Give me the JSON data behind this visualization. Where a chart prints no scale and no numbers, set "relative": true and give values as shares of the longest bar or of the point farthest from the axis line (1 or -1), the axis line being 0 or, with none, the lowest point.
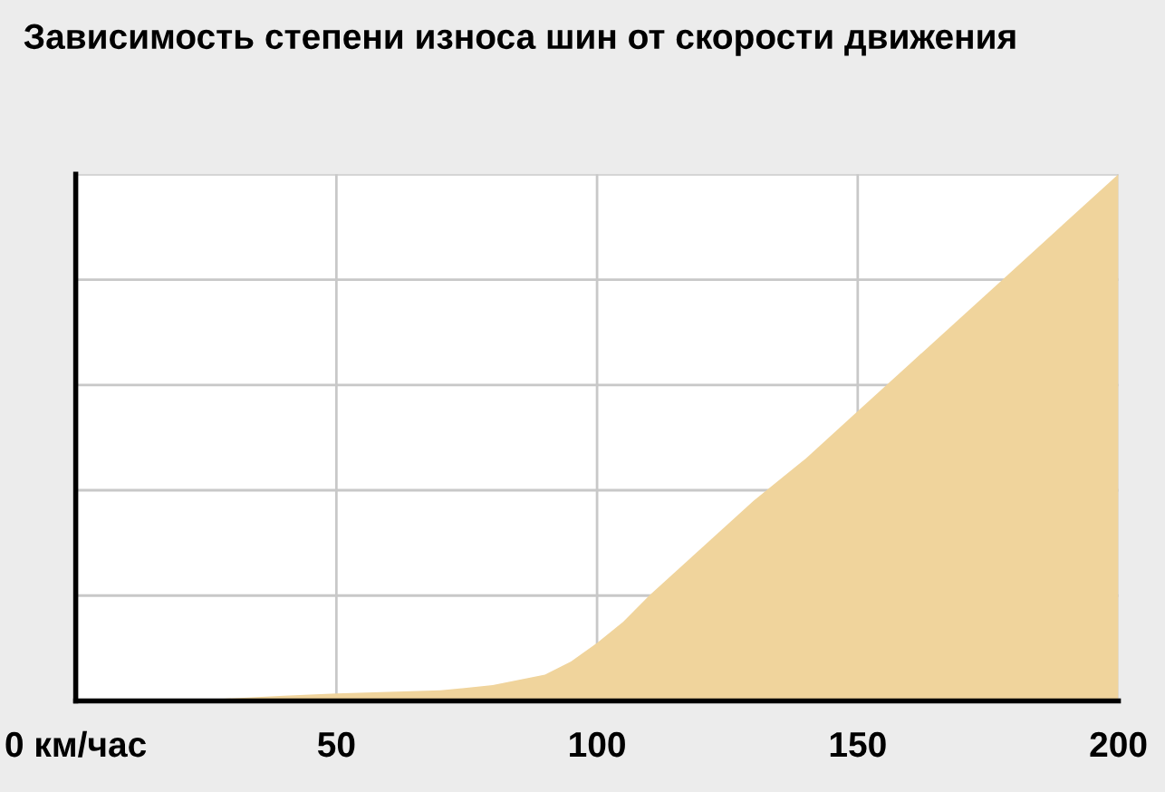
{
  "chart_data": {
    "type": "area",
    "title": "Зависимость степени износа шин от скорости движения",
    "relative": true,
    "x": [
      0,
      20,
      40,
      50,
      60,
      70,
      80,
      85,
      90,
      95,
      100,
      105,
      110,
      120,
      130,
      140,
      150,
      160,
      170,
      180,
      190,
      200
    ],
    "series": [
      {
        "color": "#f0d49c",
        "values": [
          0,
          0,
          0.01,
          0.014,
          0.017,
          0.02,
          0.03,
          0.04,
          0.05,
          0.075,
          0.11,
          0.15,
          0.2,
          0.29,
          0.38,
          0.46,
          0.55,
          0.64,
          0.73,
          0.82,
          0.91,
          1
        ]
      }
    ],
    "xlim": [
      0,
      200
    ],
    "xticks": [
      {
        "value": 0,
        "label": "0 км/час"
      },
      50,
      100,
      150,
      200
    ],
    "grid": true
  }
}
